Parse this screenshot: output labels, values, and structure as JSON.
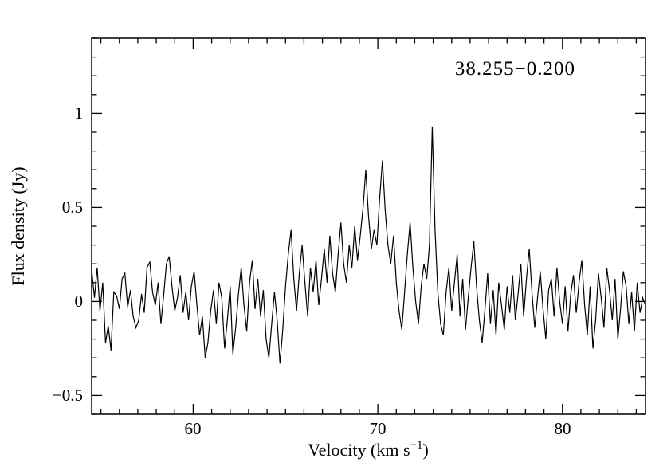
{
  "chart_data": {
    "type": "line",
    "title": "38.255−0.200",
    "xlabel": "Velocity (km s⁻¹)",
    "xlabel_parts": {
      "pre": "Velocity (km s",
      "sup": "−1",
      "post": ")"
    },
    "ylabel": "Flux density (Jy)",
    "xlim": [
      54.5,
      84.5
    ],
    "ylim": [
      -0.6,
      1.4
    ],
    "xticks": [
      60,
      70,
      80
    ],
    "xtick_labels": [
      "60",
      "70",
      "80"
    ],
    "x_minor_step": 1,
    "yticks": [
      -0.5,
      0,
      0.5,
      1
    ],
    "ytick_labels": [
      "−0.5",
      "0",
      "0.5",
      "1"
    ],
    "y_minor_step": 0.1,
    "grid": false,
    "legend": "none",
    "line_color": "#000000",
    "background": "#ffffff",
    "series": [
      {
        "name": "spectrum",
        "x_start": 54.5,
        "x_step": 0.15,
        "values": [
          0.17,
          0.02,
          0.18,
          -0.05,
          0.1,
          -0.22,
          -0.13,
          -0.26,
          0.05,
          0.03,
          -0.04,
          0.12,
          0.15,
          -0.03,
          0.06,
          -0.08,
          -0.14,
          -0.1,
          0.04,
          -0.06,
          0.18,
          0.21,
          0.05,
          -0.02,
          0.1,
          -0.12,
          0.03,
          0.2,
          0.24,
          0.08,
          -0.05,
          0.02,
          0.14,
          -0.06,
          0.05,
          -0.1,
          0.08,
          0.16,
          -0.02,
          -0.18,
          -0.08,
          -0.3,
          -0.22,
          -0.05,
          0.06,
          -0.12,
          0.1,
          0.02,
          -0.25,
          -0.1,
          0.08,
          -0.28,
          -0.14,
          0.04,
          0.18,
          -0.02,
          -0.16,
          0.1,
          0.22,
          -0.04,
          0.12,
          -0.08,
          0.06,
          -0.2,
          -0.3,
          -0.12,
          0.05,
          -0.1,
          -0.33,
          -0.15,
          0.08,
          0.25,
          0.38,
          0.12,
          -0.05,
          0.15,
          0.3,
          0.1,
          -0.08,
          0.18,
          0.05,
          0.22,
          -0.02,
          0.12,
          0.28,
          0.1,
          0.35,
          0.15,
          0.05,
          0.25,
          0.42,
          0.2,
          0.1,
          0.3,
          0.18,
          0.4,
          0.22,
          0.35,
          0.5,
          0.7,
          0.45,
          0.28,
          0.38,
          0.3,
          0.55,
          0.75,
          0.48,
          0.3,
          0.2,
          0.35,
          0.1,
          -0.05,
          -0.15,
          0.05,
          0.25,
          0.42,
          0.18,
          0.0,
          -0.12,
          0.08,
          0.2,
          0.12,
          0.3,
          0.93,
          0.38,
          0.05,
          -0.12,
          -0.18,
          0.05,
          0.18,
          -0.05,
          0.1,
          0.25,
          -0.08,
          0.12,
          -0.15,
          0.02,
          0.18,
          0.32,
          0.08,
          -0.1,
          -0.22,
          -0.05,
          0.15,
          -0.12,
          0.06,
          -0.18,
          0.1,
          -0.02,
          -0.15,
          0.08,
          -0.06,
          0.14,
          -0.1,
          0.04,
          0.2,
          -0.08,
          0.12,
          0.28,
          0.05,
          -0.14,
          0.02,
          0.16,
          -0.04,
          -0.2,
          0.06,
          0.12,
          -0.08,
          0.18,
          0.0,
          -0.12,
          0.08,
          -0.16,
          0.04,
          0.14,
          -0.06,
          0.1,
          0.22,
          -0.02,
          -0.18,
          0.08,
          -0.25,
          -0.1,
          0.15,
          0.02,
          -0.14,
          0.18,
          0.06,
          -0.1,
          0.12,
          -0.2,
          -0.04,
          0.16,
          0.08,
          -0.12,
          0.05,
          -0.16,
          0.1,
          -0.06,
          0.02,
          -0.02
        ]
      }
    ]
  }
}
